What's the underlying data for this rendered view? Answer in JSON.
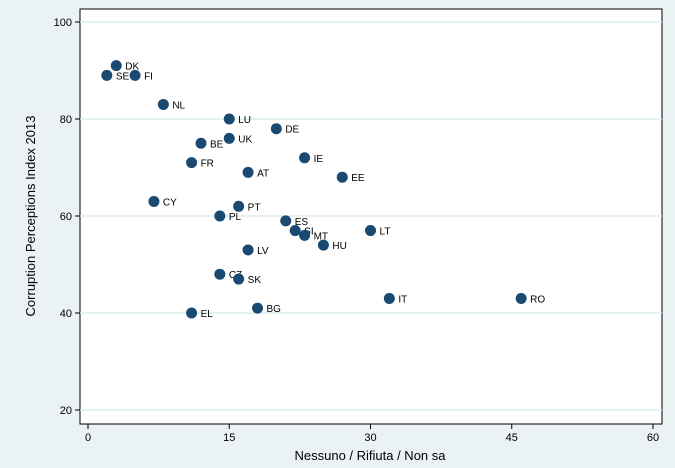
{
  "chart_data": {
    "type": "scatter",
    "xlabel": "Nessuno / Rifiuta / Non sa",
    "ylabel": "Corruption Perceptions Index 2013",
    "xlim": [
      0,
      60
    ],
    "ylim": [
      20,
      100
    ],
    "xticks": [
      "0",
      "15",
      "30",
      "45",
      "60"
    ],
    "xtick_values": [
      0,
      15,
      30,
      45,
      60
    ],
    "yticks": [
      "20",
      "40",
      "60",
      "80",
      "100"
    ],
    "ytick_values": [
      20,
      40,
      60,
      80,
      100
    ],
    "grid": "horizontal",
    "marker_color": "#1a4a72",
    "points": [
      {
        "label": "DK",
        "x": 3,
        "y": 91
      },
      {
        "label": "SE",
        "x": 2,
        "y": 89
      },
      {
        "label": "FI",
        "x": 5,
        "y": 89
      },
      {
        "label": "NL",
        "x": 8,
        "y": 83
      },
      {
        "label": "LU",
        "x": 15,
        "y": 80
      },
      {
        "label": "DE",
        "x": 20,
        "y": 78
      },
      {
        "label": "UK",
        "x": 15,
        "y": 76
      },
      {
        "label": "BE",
        "x": 12,
        "y": 75
      },
      {
        "label": "IE",
        "x": 23,
        "y": 72
      },
      {
        "label": "FR",
        "x": 11,
        "y": 71
      },
      {
        "label": "AT",
        "x": 17,
        "y": 69
      },
      {
        "label": "EE",
        "x": 27,
        "y": 68
      },
      {
        "label": "CY",
        "x": 7,
        "y": 63
      },
      {
        "label": "PT",
        "x": 16,
        "y": 62
      },
      {
        "label": "PL",
        "x": 14,
        "y": 60
      },
      {
        "label": "ES",
        "x": 21,
        "y": 59
      },
      {
        "label": "SI",
        "x": 22,
        "y": 57
      },
      {
        "label": "MT",
        "x": 23,
        "y": 56
      },
      {
        "label": "LT",
        "x": 30,
        "y": 57
      },
      {
        "label": "HU",
        "x": 25,
        "y": 54
      },
      {
        "label": "LV",
        "x": 17,
        "y": 53
      },
      {
        "label": "CZ",
        "x": 14,
        "y": 48
      },
      {
        "label": "SK",
        "x": 16,
        "y": 47
      },
      {
        "label": "IT",
        "x": 32,
        "y": 43
      },
      {
        "label": "RO",
        "x": 46,
        "y": 43
      },
      {
        "label": "BG",
        "x": 18,
        "y": 41
      },
      {
        "label": "EL",
        "x": 11,
        "y": 40
      }
    ]
  }
}
